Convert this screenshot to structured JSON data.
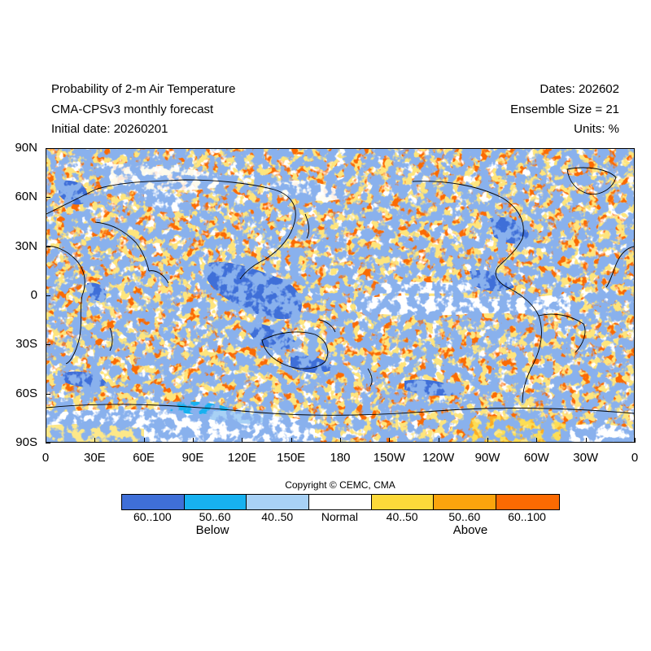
{
  "header": {
    "title_line1": "Probability of 2-m Air Temperature",
    "title_line2": "CMA-CPSv3 monthly forecast",
    "title_line3": "Initial date: 20260201",
    "dates": "Dates: 202602",
    "ensemble": "Ensemble Size = 21",
    "units": "Units: %"
  },
  "map": {
    "lat_ticks": [
      "90N",
      "60N",
      "30N",
      "0",
      "30S",
      "60S",
      "90S"
    ],
    "lon_ticks": [
      "0",
      "30E",
      "60E",
      "90E",
      "120E",
      "150E",
      "180",
      "150W",
      "120W",
      "90W",
      "60W",
      "30W",
      "0"
    ]
  },
  "copyright": "Copyright © CEMC, CMA",
  "legend": {
    "bins": [
      {
        "label": "60..100",
        "color": "#3f6fd8"
      },
      {
        "label": "50..60",
        "color": "#17b1f0"
      },
      {
        "label": "40..50",
        "color": "#a8d1f5"
      },
      {
        "label": "Normal",
        "color": "#ffffff"
      },
      {
        "label": "40..50",
        "color": "#fcd93a"
      },
      {
        "label": "50..60",
        "color": "#fba40d"
      },
      {
        "label": "60..100",
        "color": "#fb6a02"
      }
    ],
    "below_label": "Below",
    "above_label": "Above"
  }
}
